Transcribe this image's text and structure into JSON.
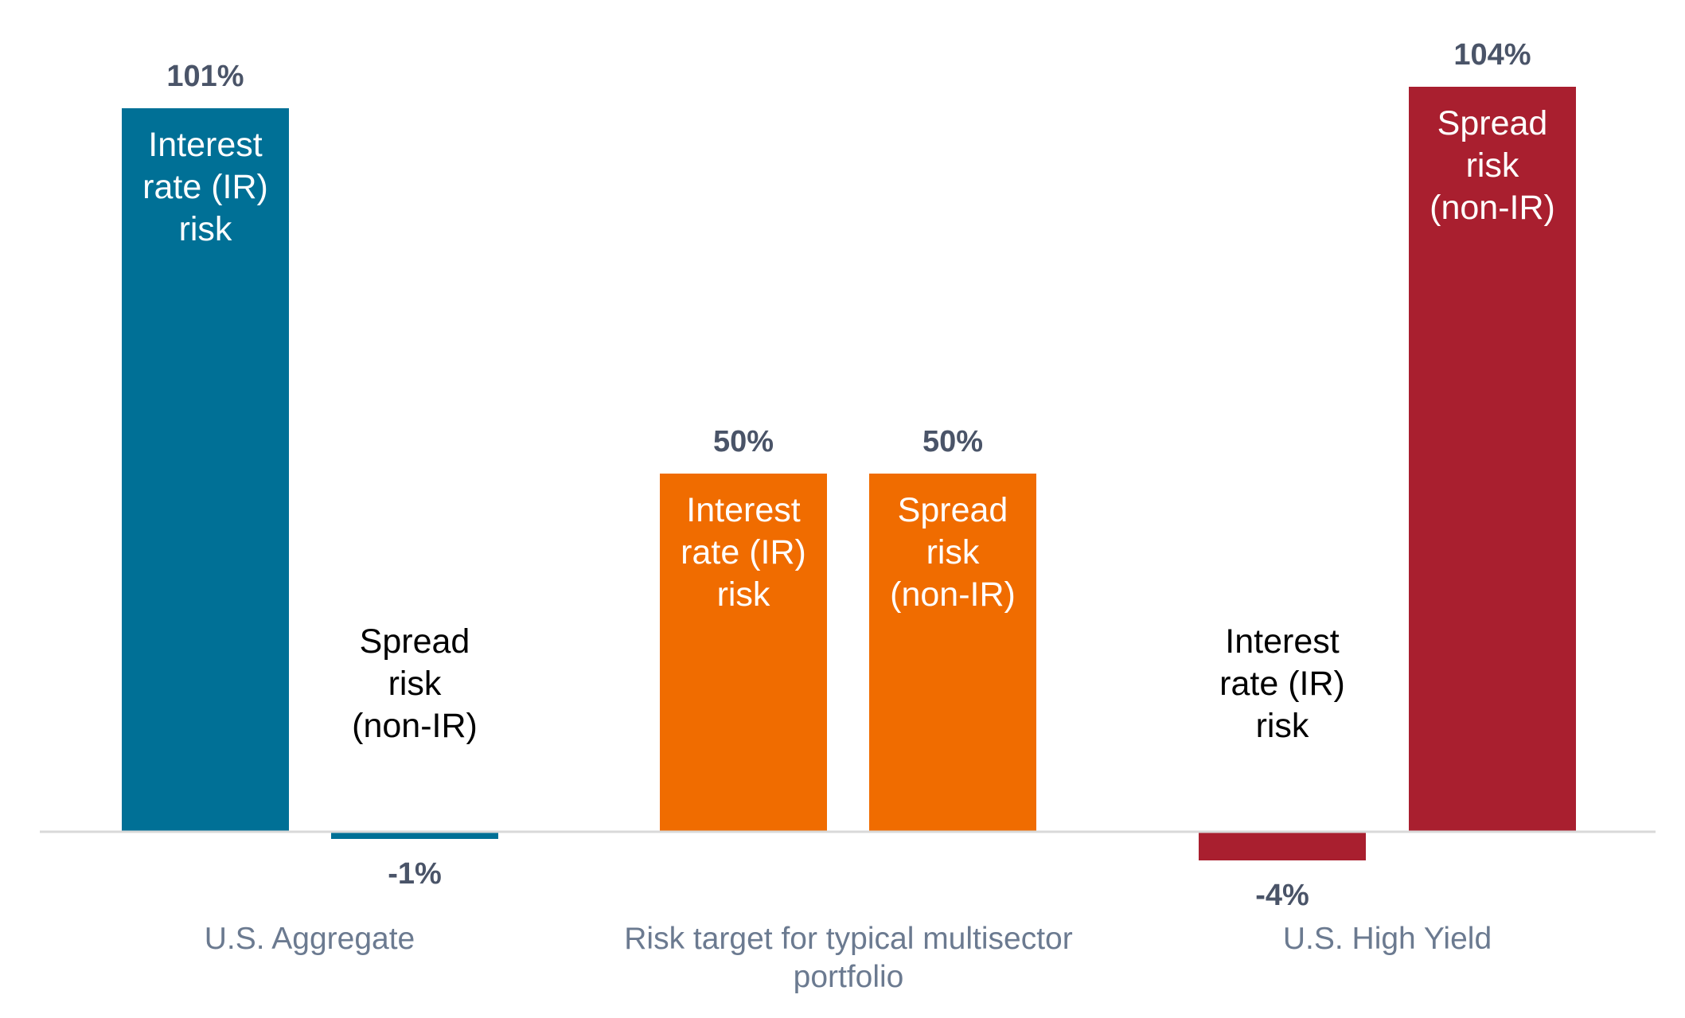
{
  "chart_data": {
    "type": "bar",
    "title": "",
    "xlabel": "",
    "ylabel": "",
    "ylim": [
      -10,
      110
    ],
    "grid": false,
    "legend": "none",
    "categories": [
      {
        "label": "U.S. Aggregate"
      },
      {
        "label": "Risk target for typical multisector portfolio"
      },
      {
        "label": "U.S. High Yield"
      }
    ],
    "bars": [
      {
        "category": 0,
        "text": "Interest rate (IR) risk",
        "value": 101,
        "value_label": "101%",
        "color": "#007096",
        "text_color": "#ffffff"
      },
      {
        "category": 0,
        "text": "Spread risk (non-IR)",
        "value": -1,
        "value_label": "-1%",
        "color": "#007096",
        "text_color": "#000000"
      },
      {
        "category": 1,
        "text": "Interest rate (IR) risk",
        "value": 50,
        "value_label": "50%",
        "color": "#f06c00",
        "text_color": "#ffffff"
      },
      {
        "category": 1,
        "text": "Spread risk (non-IR)",
        "value": 50,
        "value_label": "50%",
        "color": "#f06c00",
        "text_color": "#ffffff"
      },
      {
        "category": 2,
        "text": "Interest rate (IR) risk",
        "value": -4,
        "value_label": "-4%",
        "color": "#a91f2f",
        "text_color": "#000000"
      },
      {
        "category": 2,
        "text": "Spread risk (non-IR)",
        "value": 104,
        "value_label": "104%",
        "color": "#a91f2f",
        "text_color": "#ffffff"
      }
    ],
    "axis_color": "#d9d9d9"
  }
}
